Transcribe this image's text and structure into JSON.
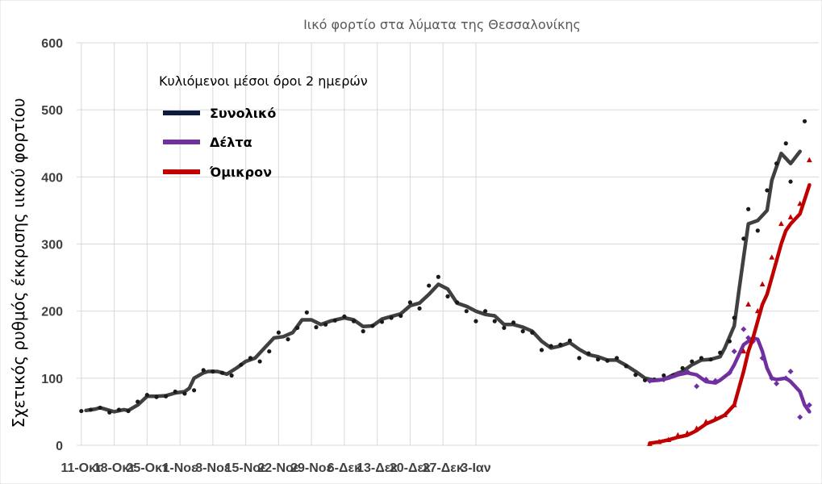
{
  "chart_data": {
    "type": "line",
    "title": "Ιικό φορτίο στα λύματα της Θεσσαλονίκης",
    "ylabel": "Σχετικός ρυθμός έκκρισης ιικού φορτίου",
    "xlabel": "",
    "ylim": [
      0,
      600
    ],
    "yticks": [
      0,
      100,
      200,
      300,
      400,
      500,
      600
    ],
    "x_tick_labels": [
      "11-Οκτ",
      "18-Οκτ",
      "25-Οκτ",
      "1-Νοε",
      "8-Νοε",
      "15-Νοε",
      "22-Νοε",
      "29-Νοε",
      "6-Δεκ",
      "13-Δεκ",
      "20-Δεκ",
      "27-Δεκ",
      "3-Ιαν"
    ],
    "x_start": "2021-10-11",
    "grid": true,
    "legend_title": "Κυλιόμενοι μέσοι όροι 2 ημερών",
    "legend_position": "top-left",
    "series": [
      {
        "name": "Συνολικό",
        "color": "#404040",
        "legend_color": "#0d1b3e",
        "marker_color": "#1a1a1a",
        "line": [
          [
            1,
            52
          ],
          [
            3,
            54
          ],
          [
            4,
            56
          ],
          [
            6,
            52
          ],
          [
            7,
            50
          ],
          [
            9,
            53
          ],
          [
            10,
            52
          ],
          [
            12,
            60
          ],
          [
            14,
            73
          ],
          [
            16,
            73
          ],
          [
            18,
            74
          ],
          [
            20,
            78
          ],
          [
            22,
            80
          ],
          [
            23,
            85
          ],
          [
            24,
            100
          ],
          [
            26,
            108
          ],
          [
            27,
            110
          ],
          [
            29,
            110
          ],
          [
            31,
            106
          ],
          [
            33,
            115
          ],
          [
            35,
            125
          ],
          [
            37,
            130
          ],
          [
            39,
            145
          ],
          [
            41,
            160
          ],
          [
            43,
            162
          ],
          [
            45,
            168
          ],
          [
            47,
            187
          ],
          [
            49,
            187
          ],
          [
            51,
            180
          ],
          [
            53,
            185
          ],
          [
            56,
            190
          ],
          [
            58,
            187
          ],
          [
            60,
            177
          ],
          [
            62,
            178
          ],
          [
            64,
            188
          ],
          [
            66,
            192
          ],
          [
            68,
            196
          ],
          [
            70,
            208
          ],
          [
            72,
            212
          ],
          [
            74,
            225
          ],
          [
            76,
            240
          ],
          [
            78,
            233
          ],
          [
            80,
            212
          ],
          [
            82,
            207
          ],
          [
            84,
            200
          ],
          [
            86,
            195
          ],
          [
            88,
            193
          ],
          [
            90,
            180
          ],
          [
            92,
            180
          ],
          [
            94,
            176
          ],
          [
            96,
            170
          ],
          [
            98,
            155
          ],
          [
            100,
            145
          ],
          [
            102,
            148
          ],
          [
            104,
            153
          ],
          [
            106,
            143
          ],
          [
            108,
            135
          ],
          [
            110,
            132
          ],
          [
            112,
            127
          ],
          [
            114,
            127
          ],
          [
            116,
            119
          ],
          [
            118,
            110
          ],
          [
            120,
            100
          ],
          [
            122,
            97
          ],
          [
            124,
            98
          ],
          [
            126,
            105
          ],
          [
            128,
            110
          ],
          [
            130,
            120
          ],
          [
            132,
            127
          ],
          [
            134,
            128
          ],
          [
            136,
            132
          ],
          [
            137,
            145
          ],
          [
            139,
            178
          ],
          [
            140,
            230
          ],
          [
            141,
            280
          ],
          [
            142,
            330
          ],
          [
            144,
            335
          ],
          [
            146,
            350
          ],
          [
            147,
            395
          ],
          [
            149,
            435
          ],
          [
            151,
            420
          ],
          [
            153,
            438
          ]
        ],
        "markers": [
          [
            0,
            51
          ],
          [
            2,
            53
          ],
          [
            4,
            56
          ],
          [
            6,
            49
          ],
          [
            8,
            53
          ],
          [
            10,
            51
          ],
          [
            12,
            65
          ],
          [
            14,
            75
          ],
          [
            16,
            72
          ],
          [
            18,
            73
          ],
          [
            20,
            80
          ],
          [
            22,
            77
          ],
          [
            24,
            82
          ],
          [
            26,
            112
          ],
          [
            28,
            110
          ],
          [
            30,
            108
          ],
          [
            32,
            104
          ],
          [
            34,
            120
          ],
          [
            36,
            130
          ],
          [
            38,
            125
          ],
          [
            40,
            140
          ],
          [
            42,
            168
          ],
          [
            44,
            158
          ],
          [
            46,
            175
          ],
          [
            48,
            198
          ],
          [
            50,
            176
          ],
          [
            52,
            180
          ],
          [
            54,
            186
          ],
          [
            56,
            192
          ],
          [
            58,
            185
          ],
          [
            60,
            170
          ],
          [
            62,
            178
          ],
          [
            64,
            184
          ],
          [
            66,
            190
          ],
          [
            68,
            193
          ],
          [
            70,
            213
          ],
          [
            72,
            204
          ],
          [
            74,
            238
          ],
          [
            76,
            251
          ],
          [
            78,
            222
          ],
          [
            80,
            213
          ],
          [
            82,
            200
          ],
          [
            84,
            185
          ],
          [
            86,
            200
          ],
          [
            88,
            185
          ],
          [
            90,
            175
          ],
          [
            92,
            183
          ],
          [
            94,
            170
          ],
          [
            96,
            168
          ],
          [
            98,
            142
          ],
          [
            100,
            148
          ],
          [
            102,
            150
          ],
          [
            104,
            156
          ],
          [
            106,
            130
          ],
          [
            108,
            137
          ],
          [
            110,
            128
          ],
          [
            112,
            126
          ],
          [
            114,
            130
          ],
          [
            116,
            118
          ],
          [
            118,
            105
          ],
          [
            120,
            97
          ],
          [
            122,
            98
          ],
          [
            124,
            104
          ],
          [
            126,
            104
          ],
          [
            128,
            115
          ],
          [
            130,
            125
          ],
          [
            132,
            130
          ],
          [
            134,
            128
          ],
          [
            136,
            138
          ],
          [
            138,
            155
          ],
          [
            139,
            190
          ],
          [
            141,
            308
          ],
          [
            142,
            352
          ],
          [
            144,
            320
          ],
          [
            146,
            380
          ],
          [
            148,
            420
          ],
          [
            150,
            450
          ],
          [
            151,
            393
          ],
          [
            154,
            483
          ]
        ]
      },
      {
        "name": "Δέλτα",
        "color": "#7030a0",
        "marker_color": "#7030a0",
        "line": [
          [
            121,
            96
          ],
          [
            123,
            97
          ],
          [
            125,
            100
          ],
          [
            127,
            105
          ],
          [
            129,
            108
          ],
          [
            131,
            105
          ],
          [
            133,
            95
          ],
          [
            135,
            93
          ],
          [
            136,
            97
          ],
          [
            138,
            108
          ],
          [
            139,
            120
          ],
          [
            140,
            135
          ],
          [
            141,
            150
          ],
          [
            142,
            155
          ],
          [
            143,
            160
          ],
          [
            144,
            158
          ],
          [
            145,
            140
          ],
          [
            146,
            115
          ],
          [
            147,
            100
          ],
          [
            148,
            98
          ],
          [
            150,
            100
          ],
          [
            151,
            95
          ],
          [
            153,
            80
          ],
          [
            154,
            60
          ],
          [
            155,
            50
          ]
        ],
        "markers": [
          [
            121,
            96
          ],
          [
            124,
            98
          ],
          [
            127,
            107
          ],
          [
            129,
            110
          ],
          [
            131,
            88
          ],
          [
            133,
            98
          ],
          [
            135,
            96
          ],
          [
            138,
            108
          ],
          [
            139,
            140
          ],
          [
            141,
            173
          ],
          [
            142,
            160
          ],
          [
            143,
            155
          ],
          [
            145,
            130
          ],
          [
            147,
            100
          ],
          [
            148,
            92
          ],
          [
            150,
            100
          ],
          [
            151,
            110
          ],
          [
            153,
            42
          ],
          [
            155,
            60
          ]
        ]
      },
      {
        "name": "Όμικρον",
        "color": "#c00000",
        "marker_color": "#c00000",
        "line": [
          [
            121,
            3
          ],
          [
            123,
            5
          ],
          [
            125,
            8
          ],
          [
            127,
            12
          ],
          [
            129,
            15
          ],
          [
            131,
            22
          ],
          [
            133,
            32
          ],
          [
            135,
            38
          ],
          [
            137,
            45
          ],
          [
            139,
            60
          ],
          [
            140,
            85
          ],
          [
            141,
            110
          ],
          [
            142,
            140
          ],
          [
            143,
            160
          ],
          [
            144,
            185
          ],
          [
            145,
            210
          ],
          [
            146,
            225
          ],
          [
            147,
            250
          ],
          [
            148,
            275
          ],
          [
            149,
            300
          ],
          [
            150,
            320
          ],
          [
            151,
            330
          ],
          [
            153,
            345
          ],
          [
            155,
            388
          ]
        ],
        "markers": [
          [
            121,
            2
          ],
          [
            123,
            5
          ],
          [
            125,
            8
          ],
          [
            127,
            15
          ],
          [
            129,
            18
          ],
          [
            131,
            25
          ],
          [
            133,
            35
          ],
          [
            135,
            40
          ],
          [
            137,
            45
          ],
          [
            139,
            60
          ],
          [
            141,
            140
          ],
          [
            142,
            210
          ],
          [
            144,
            200
          ],
          [
            145,
            240
          ],
          [
            147,
            280
          ],
          [
            149,
            330
          ],
          [
            151,
            340
          ],
          [
            153,
            360
          ],
          [
            155,
            425
          ]
        ]
      }
    ]
  }
}
